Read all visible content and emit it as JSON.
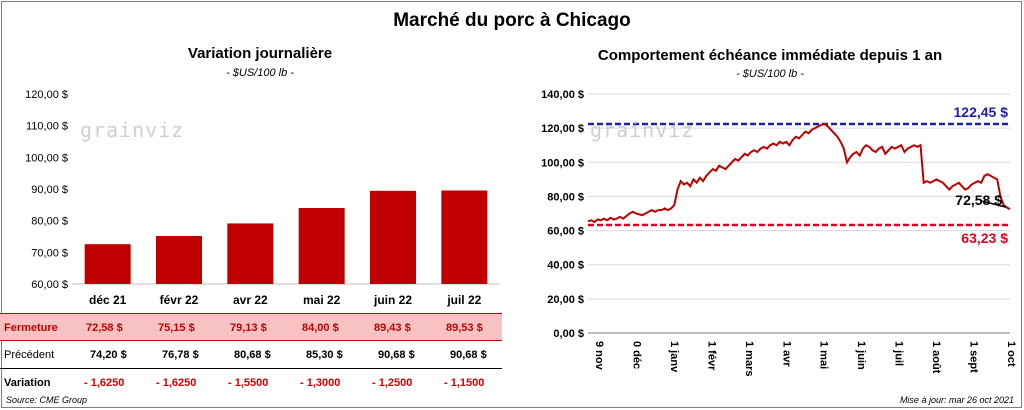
{
  "title": "Marché du porc à Chicago",
  "watermark": "grainviz",
  "source": "Source: CME Group",
  "update": "Mise à jour: mar 26 oct 2021",
  "chart_data": [
    {
      "type": "bar",
      "title": "Variation journalière",
      "subtitle": "- $US/100 lb -",
      "categories": [
        "déc 21",
        "févr 22",
        "avr 22",
        "mai 22",
        "juin 22",
        "juil 22"
      ],
      "values": [
        72.58,
        75.15,
        79.13,
        84.0,
        89.43,
        89.53
      ],
      "ylim": [
        60,
        120
      ],
      "yticks": [
        "60,00 $",
        "70,00 $",
        "80,00 $",
        "90,00 $",
        "100,00 $",
        "110,00 $",
        "120,00 $"
      ],
      "color": "#c00000",
      "table": {
        "fermeture_label": "Fermeture",
        "fermeture": [
          "72,58 $",
          "75,15 $",
          "79,13 $",
          "84,00 $",
          "89,43 $",
          "89,53 $"
        ],
        "precedent_label": "Précédent",
        "precedent": [
          "74,20 $",
          "76,78 $",
          "80,68 $",
          "85,30 $",
          "90,68 $",
          "90,68 $"
        ],
        "variation_label": "Variation",
        "variation": [
          "- 1,6250",
          "- 1,6250",
          "- 1,5500",
          "- 1,3000",
          "- 1,2500",
          "- 1,1500"
        ]
      }
    },
    {
      "type": "line",
      "title": "Comportement échéance immédiate depuis 1 an",
      "subtitle": "- $US/100 lb -",
      "ylim": [
        0,
        140
      ],
      "yticks": [
        "0,00 $",
        "20,00 $",
        "40,00 $",
        "60,00 $",
        "80,00 $",
        "100,00 $",
        "120,00 $",
        "140,00 $"
      ],
      "xticks": [
        "9 nov",
        "0 déc",
        "1 janv",
        "1 févr",
        "1 mars",
        "1 avr",
        "1 mai",
        "1 juin",
        "1 juil",
        "1 août",
        "1 sept",
        "1 oct"
      ],
      "line_color": "#c00000",
      "max_value": 122.45,
      "max_label": "122,45 $",
      "min_value": 63.23,
      "min_label": "63,23 $",
      "last_label": "72,58 $",
      "values": [
        65.5,
        66,
        65,
        66.5,
        66,
        67,
        66,
        67.5,
        66.5,
        67,
        68,
        67,
        68.5,
        70,
        71,
        70,
        69.5,
        69,
        70,
        71,
        72,
        71,
        72,
        72,
        73,
        72,
        73,
        75,
        84,
        89,
        87,
        88,
        86,
        90,
        88,
        91,
        89,
        92,
        94,
        96,
        95,
        98,
        97,
        96,
        98,
        100,
        102,
        101,
        103,
        105,
        104,
        106,
        107,
        106,
        108,
        109,
        108,
        110,
        111,
        110,
        112,
        111,
        112,
        110,
        113,
        115,
        114,
        116,
        118,
        117,
        119,
        120,
        121,
        122,
        122.45,
        121,
        119,
        117,
        115,
        112,
        108,
        100,
        103,
        105,
        106,
        104,
        108,
        110,
        109,
        107,
        106,
        108,
        109,
        105,
        107,
        109,
        108,
        109,
        110,
        106,
        108,
        109,
        110,
        109,
        110,
        88,
        89,
        88,
        89,
        90,
        89,
        88,
        86,
        84,
        86,
        87,
        88,
        86,
        84,
        85,
        87,
        88,
        89,
        88,
        92,
        93,
        92,
        91,
        90,
        80,
        75,
        73.5,
        72.58
      ]
    }
  ]
}
